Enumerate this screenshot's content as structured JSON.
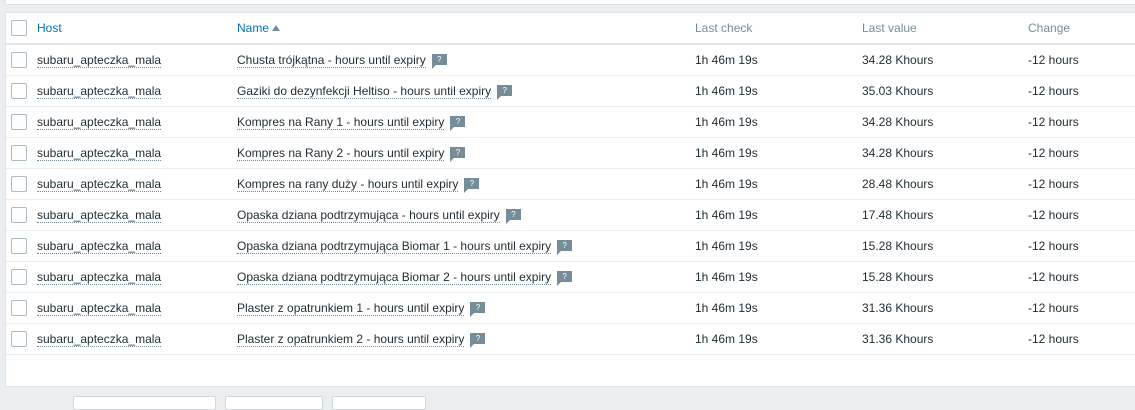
{
  "columns": {
    "host": "Host",
    "name": "Name",
    "last_check": "Last check",
    "last_value": "Last value",
    "change": "Change"
  },
  "sort": {
    "column": "name",
    "direction": "ascending"
  },
  "rows": [
    {
      "host": "subaru_apteczka_mala",
      "name": "Chusta trójkątna - hours until expiry",
      "last_check": "1h 46m 19s",
      "last_value": "34.28 Khours",
      "change": "-12 hours"
    },
    {
      "host": "subaru_apteczka_mala",
      "name": "Gaziki do dezynfekcji Heltiso - hours until expiry",
      "last_check": "1h 46m 19s",
      "last_value": "35.03 Khours",
      "change": "-12 hours"
    },
    {
      "host": "subaru_apteczka_mala",
      "name": "Kompres na Rany 1 - hours until expiry",
      "last_check": "1h 46m 19s",
      "last_value": "34.28 Khours",
      "change": "-12 hours"
    },
    {
      "host": "subaru_apteczka_mala",
      "name": "Kompres na Rany 2 - hours until expiry",
      "last_check": "1h 46m 19s",
      "last_value": "34.28 Khours",
      "change": "-12 hours"
    },
    {
      "host": "subaru_apteczka_mala",
      "name": "Kompres na rany duży - hours until expiry",
      "last_check": "1h 46m 19s",
      "last_value": "28.48 Khours",
      "change": "-12 hours"
    },
    {
      "host": "subaru_apteczka_mala",
      "name": "Opaska dziana podtrzymująca - hours until expiry",
      "last_check": "1h 46m 19s",
      "last_value": "17.48 Khours",
      "change": "-12 hours"
    },
    {
      "host": "subaru_apteczka_mala",
      "name": "Opaska dziana podtrzymująca Biomar 1 - hours until expiry",
      "last_check": "1h 46m 19s",
      "last_value": "15.28 Khours",
      "change": "-12 hours"
    },
    {
      "host": "subaru_apteczka_mala",
      "name": "Opaska dziana podtrzymująca Biomar 2 - hours until expiry",
      "last_check": "1h 46m 19s",
      "last_value": "15.28 Khours",
      "change": "-12 hours"
    },
    {
      "host": "subaru_apteczka_mala",
      "name": "Plaster z opatrunkiem 1 - hours until expiry",
      "last_check": "1h 46m 19s",
      "last_value": "31.36 Khours",
      "change": "-12 hours"
    },
    {
      "host": "subaru_apteczka_mala",
      "name": "Plaster z opatrunkiem 2 - hours until expiry",
      "last_check": "1h 46m 19s",
      "last_value": "31.36 Khours",
      "change": "-12 hours"
    }
  ],
  "hint_glyph": "?"
}
